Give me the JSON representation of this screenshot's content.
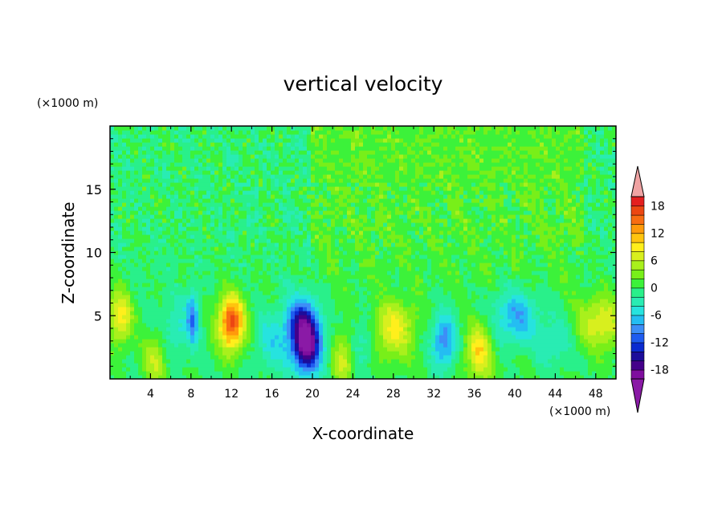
{
  "chart_data": {
    "type": "heatmap",
    "title": "vertical velocity",
    "xlabel": "X-coordinate",
    "ylabel": "Z-coordinate",
    "x_unit_label": "(×1000 m)",
    "y_unit_label": "(×1000 m)",
    "xlim": [
      0,
      50
    ],
    "ylim": [
      0,
      20
    ],
    "x_ticks": [
      "4",
      "8",
      "12",
      "16",
      "20",
      "24",
      "28",
      "32",
      "36",
      "40",
      "44",
      "48"
    ],
    "y_ticks": [
      "5",
      "10",
      "15"
    ],
    "colorbar": {
      "levels": [
        -20,
        -18,
        -16,
        -14,
        -12,
        -10,
        -8,
        -6,
        -4,
        -2,
        0,
        2,
        4,
        6,
        8,
        10,
        12,
        14,
        16,
        18,
        20
      ],
      "tick_labels": [
        "18",
        "12",
        "6",
        "0",
        "-6",
        "-12",
        "-18"
      ],
      "tick_values": [
        18,
        12,
        6,
        0,
        -6,
        -12,
        -18
      ],
      "colors": [
        "#7f0e9e",
        "#44008a",
        "#1c0d9a",
        "#0b2bd0",
        "#1f5cf0",
        "#3d8ef7",
        "#24bdf2",
        "#26e3df",
        "#29ecb3",
        "#29f08a",
        "#3cf23a",
        "#78ef19",
        "#a9f01c",
        "#d8ef1e",
        "#ffef1c",
        "#ffc40e",
        "#ff9a0b",
        "#f86d12",
        "#ec4712",
        "#e41f1f"
      ],
      "over_color": "#f0a3a3",
      "under_color": "#8a1aa6"
    },
    "features": [
      {
        "x": 12,
        "z": 4.5,
        "w": 1.3,
        "speed": 17
      },
      {
        "x": 19.5,
        "z": 2.5,
        "w": 1.5,
        "speed": -17
      },
      {
        "x": 19,
        "z": 4.5,
        "w": 1.6,
        "speed": -12
      },
      {
        "x": 33,
        "z": 3,
        "w": 1.2,
        "speed": -10
      },
      {
        "x": 40,
        "z": 5,
        "w": 2.2,
        "speed": -8
      },
      {
        "x": 8.2,
        "z": 5,
        "w": 0.6,
        "speed": -9
      },
      {
        "x": 28,
        "z": 4,
        "w": 2.0,
        "speed": 8
      },
      {
        "x": 36.5,
        "z": 2.2,
        "w": 1.3,
        "speed": 9
      },
      {
        "x": 48.5,
        "z": 4.5,
        "w": 2.3,
        "speed": 8
      },
      {
        "x": 1,
        "z": 5,
        "w": 1.2,
        "speed": 9
      },
      {
        "x": 4.5,
        "z": 1.5,
        "w": 1.2,
        "speed": 6
      },
      {
        "x": 23,
        "z": 1.5,
        "w": 1.0,
        "speed": 6
      },
      {
        "x": 16,
        "z": 3,
        "w": 1.6,
        "speed": -5
      },
      {
        "x": 25,
        "z": 3,
        "w": 1.2,
        "speed": -4
      },
      {
        "x": 44,
        "z": 3,
        "w": 2.0,
        "speed": -4
      },
      {
        "x": 6.5,
        "z": 4,
        "w": 1.5,
        "speed": -4
      },
      {
        "x": 45,
        "z": 14,
        "w": 0.8,
        "speed": 4
      }
    ]
  }
}
